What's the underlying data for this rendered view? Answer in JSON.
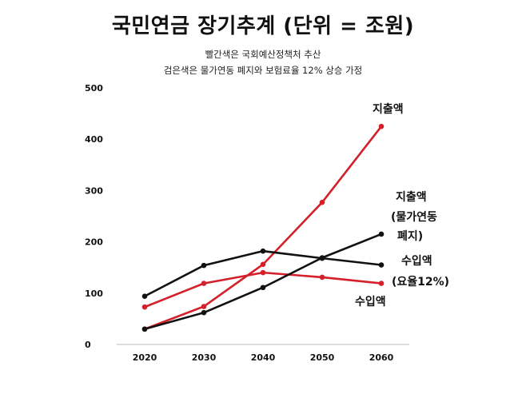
{
  "title": "국민연금 장기추계 (단위 = 조원)",
  "subtitle_lines": [
    "빨간색은 국회예산정책처 추산",
    "검은색은 물가연동 폐지와 보험료율 12% 상승 가정"
  ],
  "chart_data": {
    "type": "line",
    "title": "국민연금 장기추계 (단위 = 조원)",
    "x": [
      2020,
      2030,
      2040,
      2050,
      2060
    ],
    "ylim": [
      0,
      500
    ],
    "yticks": [
      0,
      100,
      200,
      300,
      400,
      500
    ],
    "grid": false,
    "series": [
      {
        "id": "red_expense",
        "color": "#d4202a",
        "values": [
          30,
          74,
          156,
          277,
          425
        ]
      },
      {
        "id": "red_income",
        "color": "#d4202a",
        "values": [
          73,
          119,
          140,
          131,
          119
        ]
      },
      {
        "id": "black_expense",
        "color": "#111111",
        "values": [
          30,
          62,
          111,
          169,
          215
        ]
      },
      {
        "id": "black_income",
        "color": "#111111",
        "values": [
          94,
          154,
          182,
          168,
          155
        ]
      }
    ],
    "annotations": [
      {
        "text": "지출액",
        "series": "red_expense"
      },
      {
        "text": "지출액",
        "series": "black_expense"
      },
      {
        "text": "(물가연동",
        "series": "black_expense"
      },
      {
        "text": "폐지)",
        "series": "black_expense"
      },
      {
        "text": "수입액",
        "series": "black_income"
      },
      {
        "text": "(요율12%)",
        "series": "black_income"
      },
      {
        "text": "수입액",
        "series": "red_income"
      }
    ]
  }
}
